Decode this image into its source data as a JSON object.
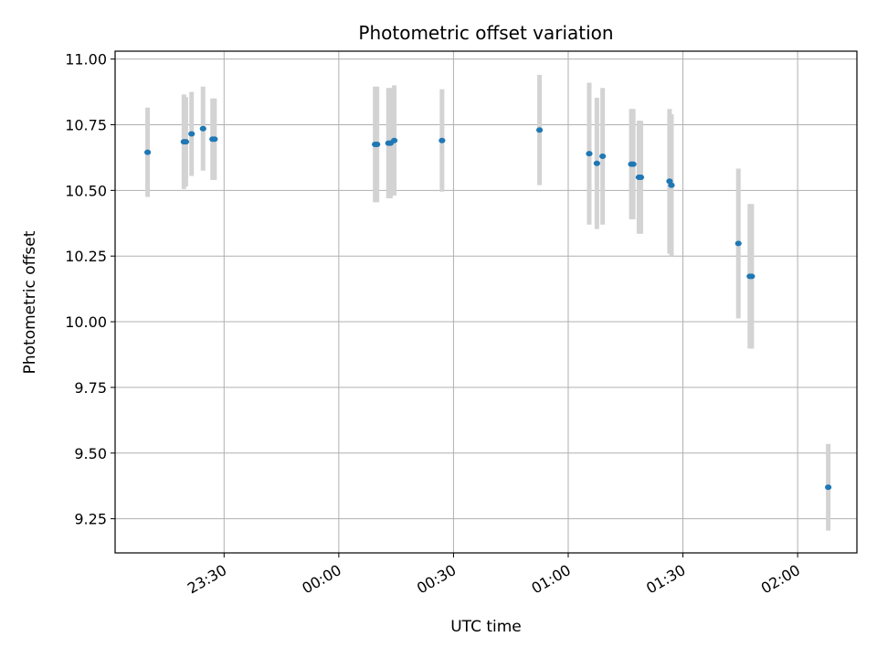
{
  "chart_data": {
    "type": "scatter",
    "title": "Photometric offset variation",
    "xlabel": "UTC time",
    "ylabel": "Photometric offset",
    "xlim": [
      "23:01:30",
      "02:15:30"
    ],
    "ylim": [
      9.12,
      11.03
    ],
    "x_ticks": [
      "23:30",
      "00:00",
      "00:30",
      "01:00",
      "01:30",
      "02:00"
    ],
    "y_ticks": [
      "9.25",
      "9.50",
      "9.75",
      "10.00",
      "10.25",
      "10.50",
      "10.75",
      "11.00"
    ],
    "grid": true,
    "point_color": "#1f77b4",
    "errorbar_color": "#d3d3d3",
    "points": [
      {
        "t": "23:10:00",
        "y": 10.645,
        "err": 0.17
      },
      {
        "t": "23:19:30",
        "y": 10.685,
        "err": 0.18
      },
      {
        "t": "23:20:00",
        "y": 10.685,
        "err": 0.17
      },
      {
        "t": "23:21:30",
        "y": 10.715,
        "err": 0.16
      },
      {
        "t": "23:24:30",
        "y": 10.735,
        "err": 0.16
      },
      {
        "t": "23:27:00",
        "y": 10.695,
        "err": 0.155
      },
      {
        "t": "23:27:30",
        "y": 10.695,
        "err": 0.155
      },
      {
        "t": "00:09:30",
        "y": 10.675,
        "err": 0.22
      },
      {
        "t": "00:10:00",
        "y": 10.675,
        "err": 0.22
      },
      {
        "t": "00:13:00",
        "y": 10.68,
        "err": 0.21
      },
      {
        "t": "00:13:30",
        "y": 10.68,
        "err": 0.21
      },
      {
        "t": "00:14:30",
        "y": 10.69,
        "err": 0.21
      },
      {
        "t": "00:27:00",
        "y": 10.69,
        "err": 0.195
      },
      {
        "t": "00:52:30",
        "y": 10.73,
        "err": 0.21
      },
      {
        "t": "01:05:30",
        "y": 10.64,
        "err": 0.27
      },
      {
        "t": "01:07:30",
        "y": 10.603,
        "err": 0.25
      },
      {
        "t": "01:09:00",
        "y": 10.63,
        "err": 0.26
      },
      {
        "t": "01:16:30",
        "y": 10.6,
        "err": 0.21
      },
      {
        "t": "01:17:00",
        "y": 10.6,
        "err": 0.21
      },
      {
        "t": "01:18:30",
        "y": 10.55,
        "err": 0.215
      },
      {
        "t": "01:19:00",
        "y": 10.55,
        "err": 0.215
      },
      {
        "t": "01:26:30",
        "y": 10.535,
        "err": 0.275
      },
      {
        "t": "01:27:00",
        "y": 10.52,
        "err": 0.27
      },
      {
        "t": "01:44:30",
        "y": 10.298,
        "err": 0.285
      },
      {
        "t": "01:47:30",
        "y": 10.173,
        "err": 0.275
      },
      {
        "t": "01:48:00",
        "y": 10.173,
        "err": 0.275
      },
      {
        "t": "02:08:00",
        "y": 9.37,
        "err": 0.165
      }
    ]
  }
}
